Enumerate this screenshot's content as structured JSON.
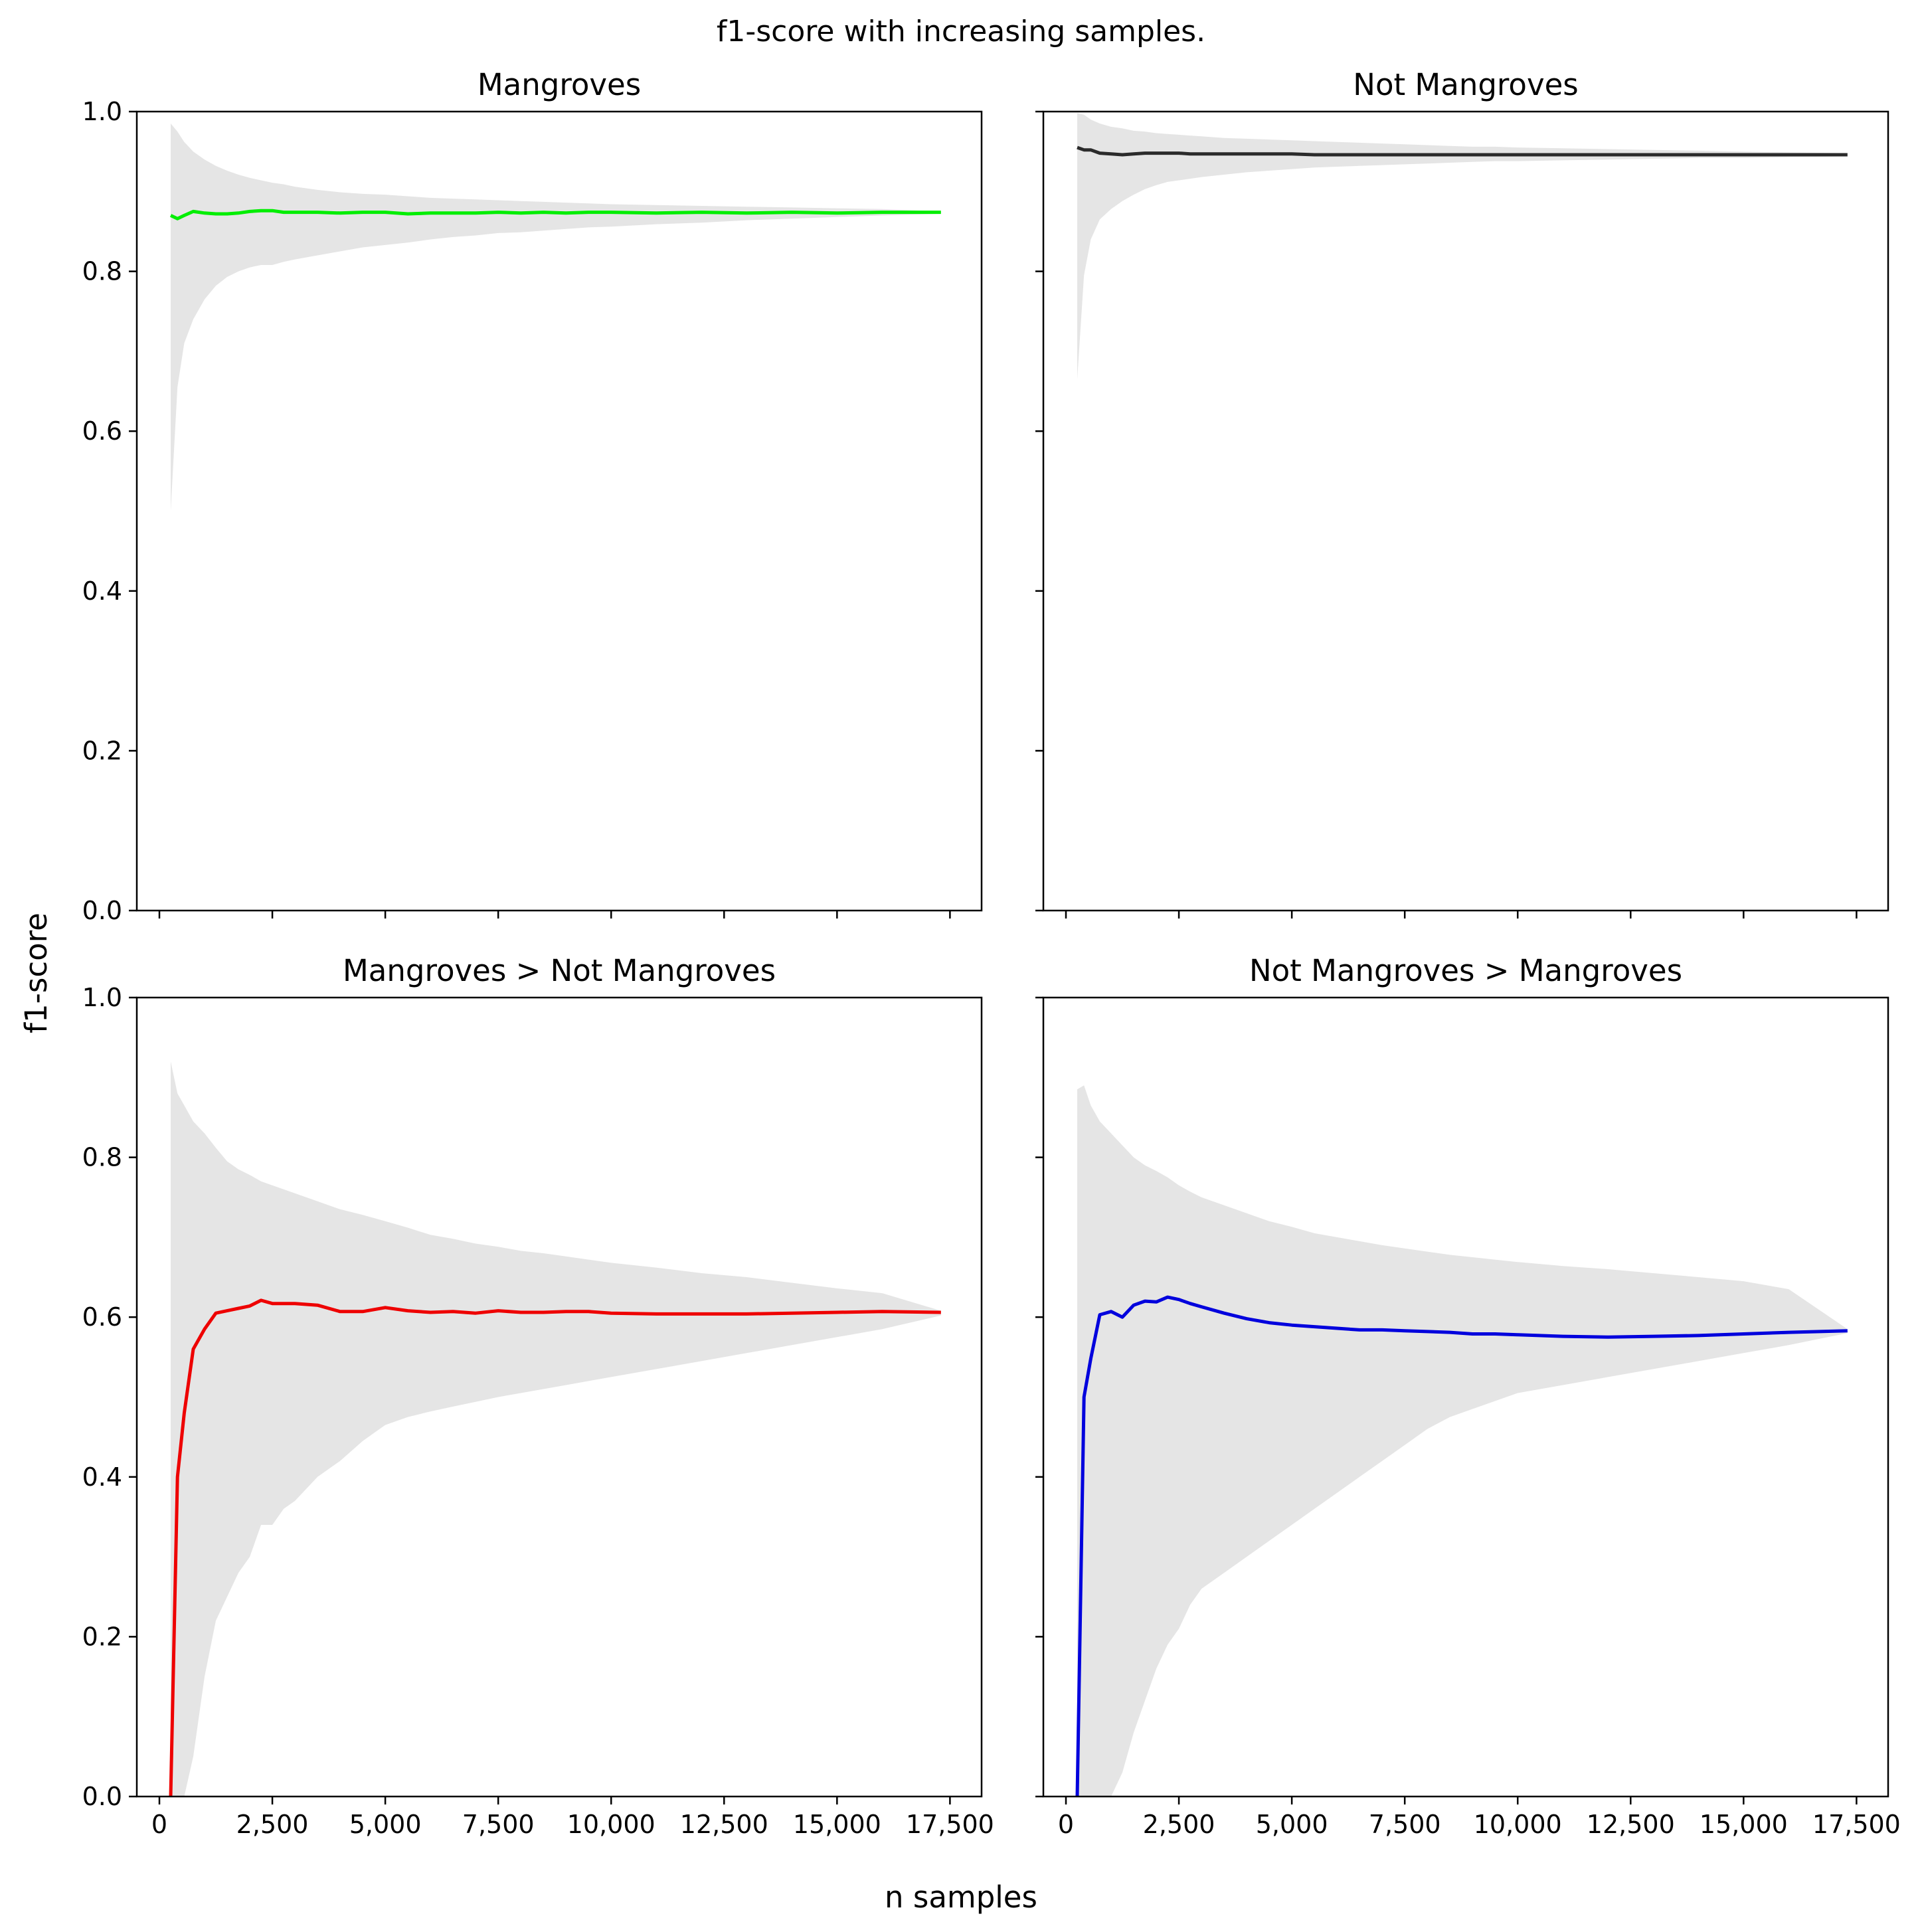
{
  "figure": {
    "suptitle": "f1-score with increasing samples.",
    "xlabel": "n samples",
    "ylabel": "f1-score"
  },
  "chart_data": [
    {
      "type": "line",
      "id": "mangroves",
      "title": "Mangroves",
      "color": "#00ee00",
      "band_color": "#e5e5e5",
      "xlim": [
        -500,
        18200
      ],
      "ylim": [
        0,
        1
      ],
      "xticks": [
        0,
        2500,
        5000,
        7500,
        10000,
        12500,
        15000,
        17500
      ],
      "xtick_labels": [
        "0",
        "2,500",
        "5,000",
        "7,500",
        "10,000",
        "12,500",
        "15,000",
        "17,500"
      ],
      "yticks": [
        0,
        0.2,
        0.4,
        0.6,
        0.8,
        1.0
      ],
      "ytick_labels": [
        "0.0",
        "0.2",
        "0.4",
        "0.6",
        "0.8",
        "1.0"
      ],
      "show_xtick_labels": false,
      "show_ytick_labels": true,
      "x": [
        250,
        400,
        550,
        750,
        1000,
        1250,
        1500,
        1750,
        2000,
        2250,
        2500,
        2750,
        3000,
        3500,
        4000,
        4500,
        5000,
        5500,
        6000,
        6500,
        7000,
        7500,
        8000,
        8500,
        9000,
        9500,
        10000,
        11000,
        12000,
        13000,
        14000,
        15000,
        16000,
        17300
      ],
      "values": [
        0.87,
        0.866,
        0.87,
        0.875,
        0.873,
        0.872,
        0.872,
        0.873,
        0.875,
        0.876,
        0.876,
        0.874,
        0.874,
        0.874,
        0.873,
        0.874,
        0.874,
        0.872,
        0.873,
        0.873,
        0.873,
        0.874,
        0.873,
        0.874,
        0.873,
        0.874,
        0.874,
        0.873,
        0.874,
        0.873,
        0.874,
        0.873,
        0.874,
        0.874
      ],
      "upper": [
        0.985,
        0.975,
        0.962,
        0.95,
        0.94,
        0.932,
        0.926,
        0.921,
        0.917,
        0.914,
        0.911,
        0.909,
        0.906,
        0.902,
        0.899,
        0.897,
        0.896,
        0.894,
        0.892,
        0.891,
        0.89,
        0.889,
        0.888,
        0.887,
        0.886,
        0.885,
        0.884,
        0.883,
        0.882,
        0.881,
        0.88,
        0.879,
        0.878,
        0.875
      ],
      "lower": [
        0.5,
        0.655,
        0.71,
        0.74,
        0.765,
        0.782,
        0.793,
        0.8,
        0.805,
        0.808,
        0.808,
        0.812,
        0.815,
        0.82,
        0.825,
        0.83,
        0.833,
        0.836,
        0.84,
        0.843,
        0.845,
        0.848,
        0.849,
        0.851,
        0.853,
        0.855,
        0.856,
        0.859,
        0.861,
        0.864,
        0.866,
        0.868,
        0.87,
        0.872
      ]
    },
    {
      "type": "line",
      "id": "not-mangroves",
      "title": "Not Mangroves",
      "color": "#2b2b2b",
      "band_color": "#e5e5e5",
      "xlim": [
        -500,
        18200
      ],
      "ylim": [
        0,
        1
      ],
      "xticks": [
        0,
        2500,
        5000,
        7500,
        10000,
        12500,
        15000,
        17500
      ],
      "xtick_labels": [
        "0",
        "2,500",
        "5,000",
        "7,500",
        "10,000",
        "12,500",
        "15,000",
        "17,500"
      ],
      "yticks": [
        0,
        0.2,
        0.4,
        0.6,
        0.8,
        1.0
      ],
      "ytick_labels": [
        "0.0",
        "0.2",
        "0.4",
        "0.6",
        "0.8",
        "1.0"
      ],
      "show_xtick_labels": false,
      "show_ytick_labels": false,
      "x": [
        250,
        400,
        550,
        750,
        1000,
        1250,
        1500,
        1750,
        2000,
        2250,
        2500,
        2750,
        3000,
        3500,
        4000,
        4500,
        5000,
        5500,
        6000,
        6500,
        7000,
        7500,
        8000,
        8500,
        9000,
        9500,
        10000,
        11000,
        12000,
        13000,
        14000,
        15000,
        16000,
        17300
      ],
      "values": [
        0.955,
        0.952,
        0.952,
        0.948,
        0.947,
        0.946,
        0.947,
        0.948,
        0.948,
        0.948,
        0.948,
        0.947,
        0.947,
        0.947,
        0.947,
        0.947,
        0.947,
        0.946,
        0.946,
        0.946,
        0.946,
        0.946,
        0.946,
        0.946,
        0.946,
        0.946,
        0.946,
        0.946,
        0.946,
        0.946,
        0.946,
        0.946,
        0.946,
        0.946
      ],
      "upper": [
        0.998,
        0.996,
        0.99,
        0.985,
        0.981,
        0.979,
        0.976,
        0.975,
        0.973,
        0.972,
        0.971,
        0.97,
        0.969,
        0.967,
        0.966,
        0.965,
        0.964,
        0.963,
        0.962,
        0.961,
        0.96,
        0.959,
        0.958,
        0.957,
        0.956,
        0.956,
        0.955,
        0.954,
        0.953,
        0.952,
        0.951,
        0.95,
        0.949,
        0.948
      ],
      "lower": [
        0.665,
        0.795,
        0.84,
        0.865,
        0.878,
        0.888,
        0.896,
        0.903,
        0.908,
        0.912,
        0.914,
        0.916,
        0.918,
        0.921,
        0.924,
        0.926,
        0.928,
        0.93,
        0.931,
        0.932,
        0.933,
        0.934,
        0.935,
        0.936,
        0.937,
        0.938,
        0.938,
        0.939,
        0.94,
        0.941,
        0.942,
        0.942,
        0.943,
        0.944
      ]
    },
    {
      "type": "line",
      "id": "mangroves-to-not-mangroves",
      "title": "Mangroves > Not Mangroves",
      "color": "#ee0000",
      "band_color": "#e5e5e5",
      "xlim": [
        -500,
        18200
      ],
      "ylim": [
        0,
        1
      ],
      "xticks": [
        0,
        2500,
        5000,
        7500,
        10000,
        12500,
        15000,
        17500
      ],
      "xtick_labels": [
        "0",
        "2,500",
        "5,000",
        "7,500",
        "10,000",
        "12,500",
        "15,000",
        "17,500"
      ],
      "yticks": [
        0,
        0.2,
        0.4,
        0.6,
        0.8,
        1.0
      ],
      "ytick_labels": [
        "0.0",
        "0.2",
        "0.4",
        "0.6",
        "0.8",
        "1.0"
      ],
      "show_xtick_labels": true,
      "show_ytick_labels": true,
      "x": [
        250,
        400,
        550,
        750,
        1000,
        1250,
        1500,
        1750,
        2000,
        2250,
        2500,
        2750,
        3000,
        3500,
        4000,
        4500,
        5000,
        5500,
        6000,
        6500,
        7000,
        7500,
        8000,
        8500,
        9000,
        9500,
        10000,
        11000,
        12000,
        13000,
        14000,
        15000,
        16000,
        17300
      ],
      "values": [
        0.0,
        0.4,
        0.48,
        0.56,
        0.585,
        0.605,
        0.608,
        0.611,
        0.614,
        0.621,
        0.617,
        0.617,
        0.617,
        0.615,
        0.607,
        0.607,
        0.612,
        0.608,
        0.606,
        0.607,
        0.605,
        0.608,
        0.606,
        0.606,
        0.607,
        0.607,
        0.605,
        0.604,
        0.604,
        0.604,
        0.605,
        0.606,
        0.607,
        0.606
      ],
      "upper": [
        0.92,
        0.88,
        0.865,
        0.845,
        0.83,
        0.812,
        0.795,
        0.785,
        0.778,
        0.77,
        0.765,
        0.76,
        0.755,
        0.745,
        0.735,
        0.728,
        0.72,
        0.712,
        0.703,
        0.698,
        0.692,
        0.688,
        0.683,
        0.68,
        0.676,
        0.672,
        0.668,
        0.662,
        0.655,
        0.65,
        0.643,
        0.636,
        0.63,
        0.608
      ],
      "lower": [
        0.0,
        0.0,
        0.0,
        0.05,
        0.15,
        0.22,
        0.25,
        0.28,
        0.3,
        0.34,
        0.34,
        0.36,
        0.37,
        0.4,
        0.42,
        0.445,
        0.465,
        0.475,
        0.482,
        0.488,
        0.494,
        0.5,
        0.505,
        0.51,
        0.515,
        0.52,
        0.525,
        0.535,
        0.545,
        0.555,
        0.565,
        0.575,
        0.585,
        0.602
      ]
    },
    {
      "type": "line",
      "id": "not-mangroves-to-mangroves",
      "title": "Not Mangroves > Mangroves",
      "color": "#0000dd",
      "band_color": "#e5e5e5",
      "xlim": [
        -500,
        18200
      ],
      "ylim": [
        0,
        1
      ],
      "xticks": [
        0,
        2500,
        5000,
        7500,
        10000,
        12500,
        15000,
        17500
      ],
      "xtick_labels": [
        "0",
        "2,500",
        "5,000",
        "7,500",
        "10,000",
        "12,500",
        "15,000",
        "17,500"
      ],
      "yticks": [
        0,
        0.2,
        0.4,
        0.6,
        0.8,
        1.0
      ],
      "ytick_labels": [
        "0.0",
        "0.2",
        "0.4",
        "0.6",
        "0.8",
        "1.0"
      ],
      "show_xtick_labels": true,
      "show_ytick_labels": false,
      "x": [
        250,
        400,
        550,
        750,
        1000,
        1250,
        1500,
        1750,
        2000,
        2250,
        2500,
        2750,
        3000,
        3500,
        4000,
        4500,
        5000,
        5500,
        6000,
        6500,
        7000,
        7500,
        8000,
        8500,
        9000,
        9500,
        10000,
        11000,
        12000,
        13000,
        14000,
        15000,
        16000,
        17300
      ],
      "values": [
        0.0,
        0.5,
        0.548,
        0.603,
        0.607,
        0.6,
        0.615,
        0.62,
        0.619,
        0.625,
        0.622,
        0.617,
        0.613,
        0.605,
        0.598,
        0.593,
        0.59,
        0.588,
        0.586,
        0.584,
        0.584,
        0.583,
        0.582,
        0.581,
        0.579,
        0.579,
        0.578,
        0.576,
        0.575,
        0.576,
        0.577,
        0.579,
        0.581,
        0.583
      ],
      "upper": [
        0.885,
        0.89,
        0.865,
        0.845,
        0.83,
        0.815,
        0.8,
        0.79,
        0.783,
        0.775,
        0.765,
        0.757,
        0.75,
        0.74,
        0.73,
        0.72,
        0.713,
        0.705,
        0.7,
        0.695,
        0.69,
        0.686,
        0.682,
        0.678,
        0.675,
        0.672,
        0.669,
        0.664,
        0.66,
        0.655,
        0.65,
        0.645,
        0.635,
        0.585
      ],
      "lower": [
        0.0,
        0.0,
        0.0,
        0.0,
        0.0,
        0.03,
        0.08,
        0.12,
        0.16,
        0.19,
        0.21,
        0.24,
        0.26,
        0.28,
        0.3,
        0.32,
        0.34,
        0.36,
        0.38,
        0.4,
        0.42,
        0.44,
        0.46,
        0.475,
        0.485,
        0.495,
        0.505,
        0.515,
        0.525,
        0.535,
        0.545,
        0.555,
        0.565,
        0.58
      ]
    }
  ]
}
